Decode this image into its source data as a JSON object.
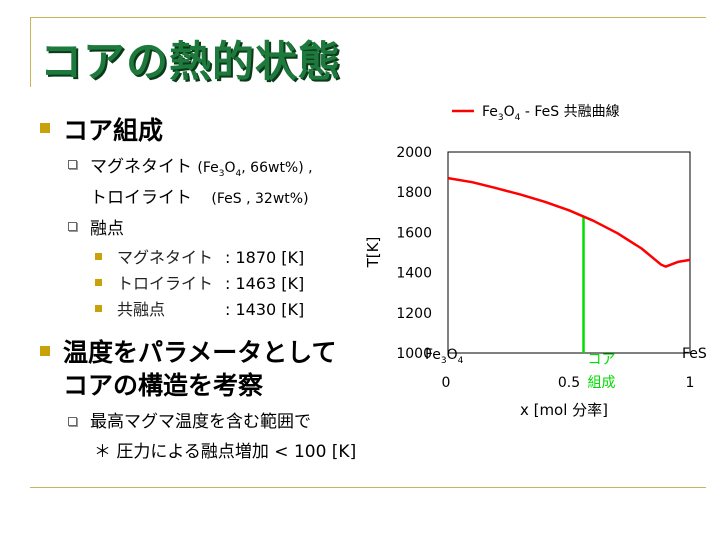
{
  "title": "コアの熱的状態",
  "bullets": {
    "core_composition": "コア組成",
    "magnetite_label": "マグネタイト",
    "magnetite_detail_a": "(Fe",
    "magnetite_detail_sub3": "3",
    "magnetite_detail_b": "O",
    "magnetite_detail_sub4": "4",
    "magnetite_detail_c": ", 66wt%) ,",
    "troilite_label": "トロイライト",
    "troilite_detail": "(FeS  , 32wt%)",
    "melting_point": "融点",
    "mp_items": [
      {
        "label": "マグネタイト",
        "value": ": 1870 [K]"
      },
      {
        "label": "トロイライト",
        "value": ": 1463 [K]"
      },
      {
        "label": "共融点",
        "value": ": 1430 [K]"
      }
    ],
    "structure_line1": "温度をパラメータとして",
    "structure_line2": "コアの構造を考察",
    "max_temp": "最高マグマ温度を含む範囲で",
    "pressure_note": "＊ 圧力による融点増加 < 100 [K]"
  },
  "chart_data": {
    "type": "line",
    "title": "",
    "legend": {
      "prefix": "Fe",
      "sub3": "3",
      "mid": "O",
      "sub4": "4",
      "suffix": " - FeS 共融曲線",
      "placement": "top"
    },
    "xlabel": "x [mol 分率]",
    "ylabel": "T[K]",
    "xlim": [
      0,
      1
    ],
    "ylim": [
      1000,
      2000
    ],
    "y_ticks": [
      "2000",
      "1800",
      "1600",
      "1400",
      "1200",
      "1000"
    ],
    "x_ticks": [
      "0",
      "0.5",
      "1"
    ],
    "x_end_left": {
      "prefix": "Fe",
      "sub3": "3",
      "mid": "O",
      "sub4": "4"
    },
    "x_end_right": "FeS",
    "series": [
      {
        "name": "Fe3O4 - FeS 共融曲線",
        "color": "#ff0000",
        "x": [
          0,
          0.1,
          0.2,
          0.3,
          0.4,
          0.5,
          0.6,
          0.7,
          0.8,
          0.88,
          0.9,
          0.95,
          1.0
        ],
        "y": [
          1870,
          1850,
          1820,
          1788,
          1752,
          1710,
          1658,
          1596,
          1520,
          1440,
          1430,
          1453,
          1463
        ]
      }
    ],
    "marker_line": {
      "x": 0.56,
      "color": "#00dd00",
      "label_line1": "コア",
      "label_line2": "組成"
    }
  }
}
